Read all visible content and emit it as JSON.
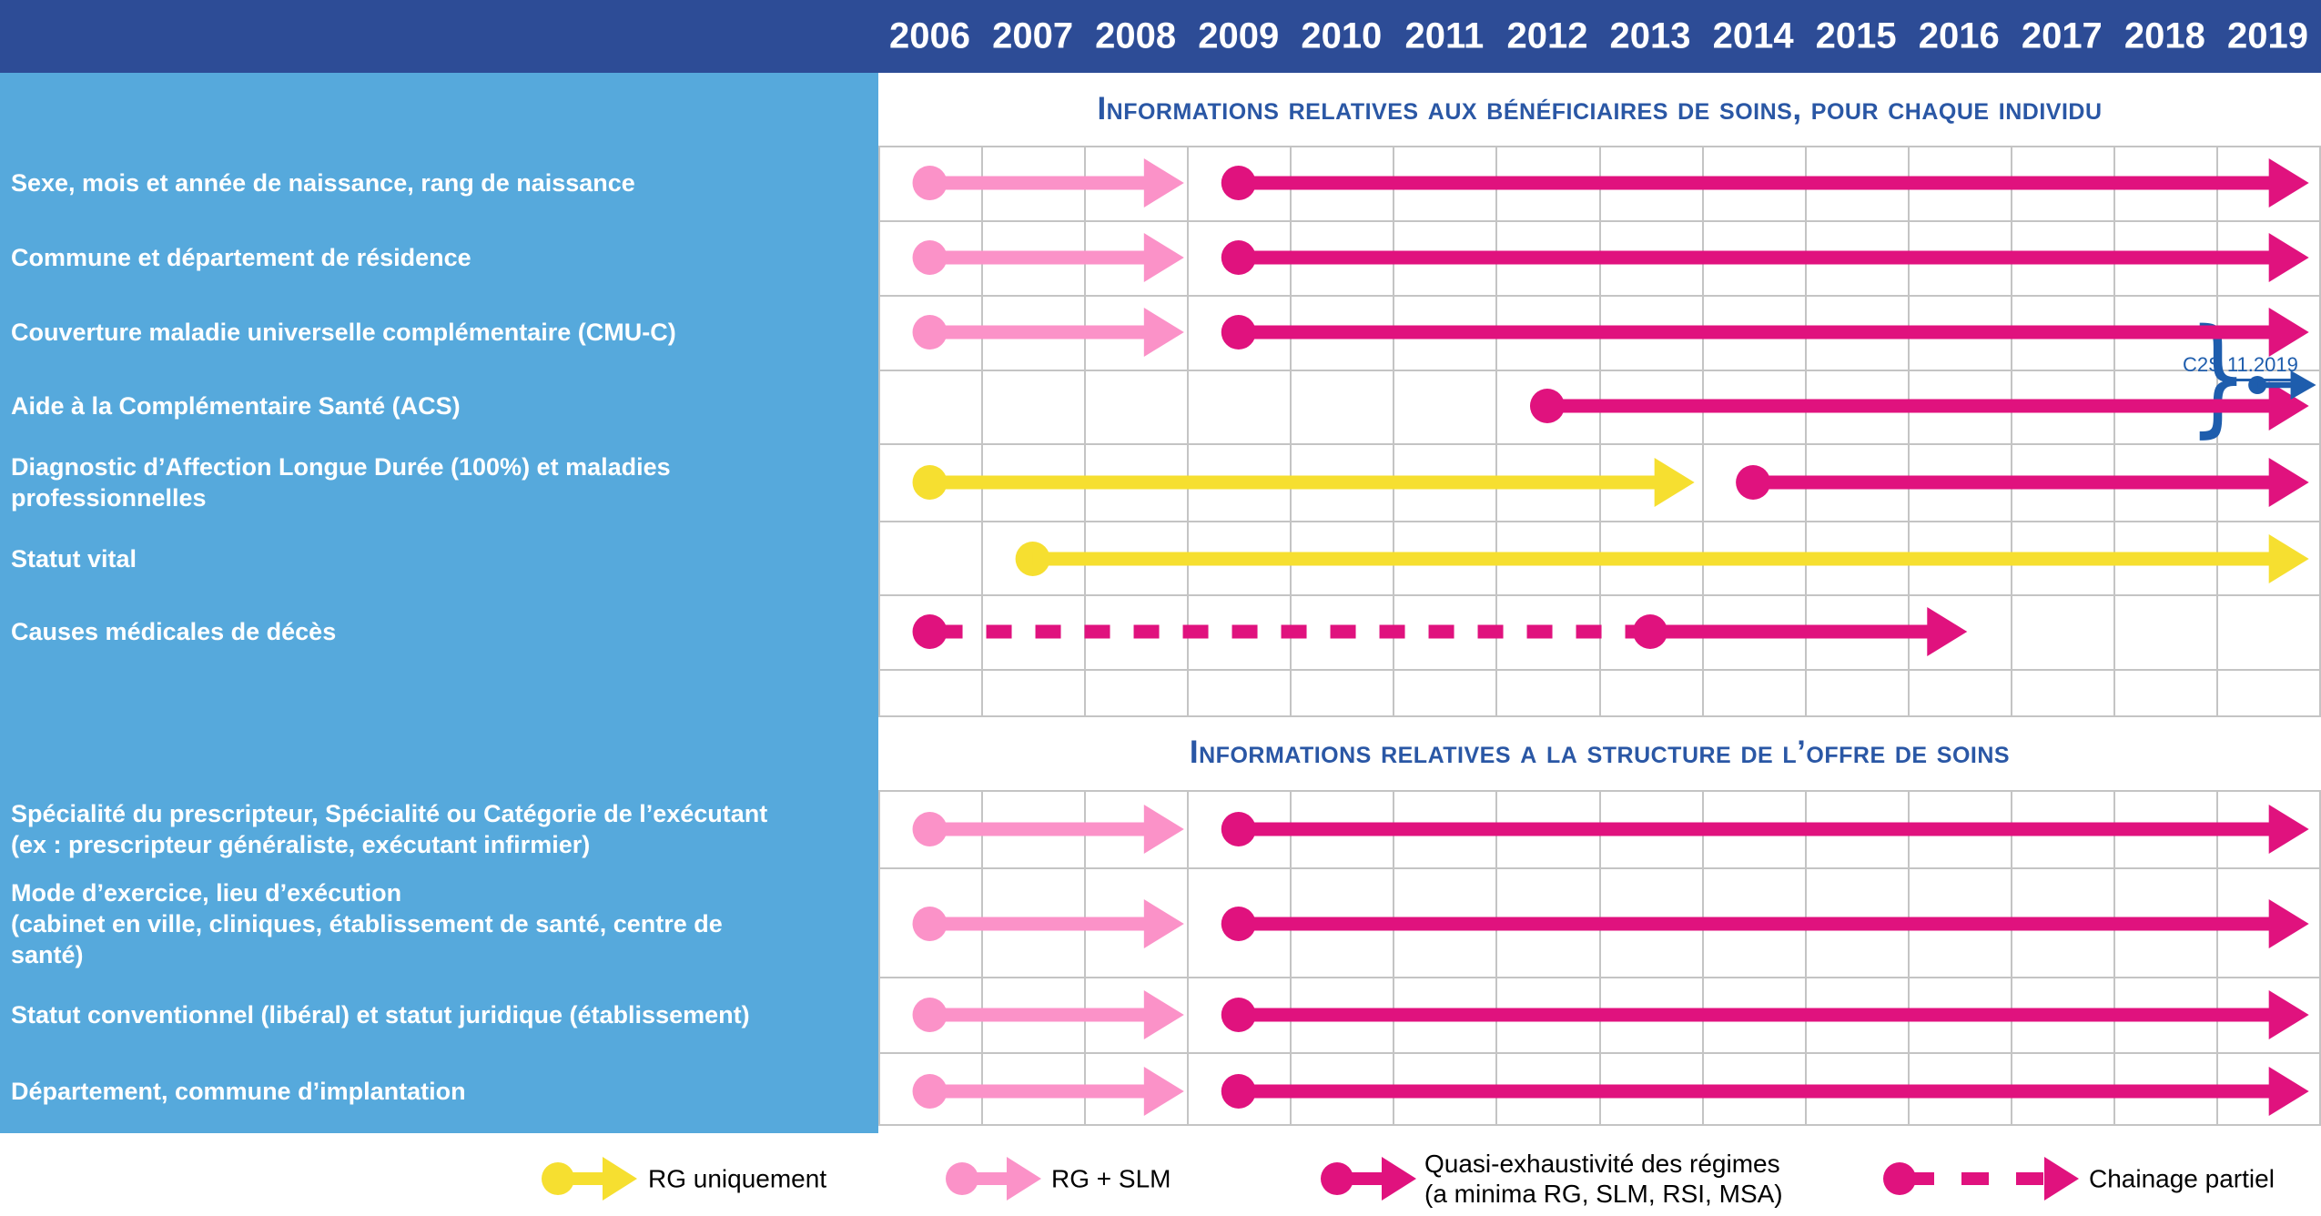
{
  "header": {
    "years": [
      "2006",
      "2007",
      "2008",
      "2009",
      "2010",
      "2011",
      "2012",
      "2013",
      "2014",
      "2015",
      "2016",
      "2017",
      "2018",
      "2019"
    ]
  },
  "sections": [
    {
      "title": "Informations relatives aux bénéficiaires de soins, pour chaque individu"
    },
    {
      "title": "Informations relatives a la structure de l’offre de soins"
    }
  ],
  "annotation": {
    "text": "C2S 11.2019"
  },
  "legend": {
    "items": [
      {
        "color_key": "yellow",
        "style": "solid",
        "lines": [
          "RG uniquement"
        ]
      },
      {
        "color_key": "pink",
        "style": "solid",
        "lines": [
          "RG + SLM"
        ]
      },
      {
        "color_key": "magenta",
        "style": "solid",
        "lines": [
          "Quasi-exhaustivité des régimes",
          "(a minima RG, SLM, RSI, MSA)"
        ]
      },
      {
        "color_key": "magenta",
        "style": "dashed",
        "lines": [
          "Chainage partiel"
        ]
      }
    ]
  },
  "colors": {
    "header_bg": "#2d4c96",
    "sidebar_bg": "#56a9dc",
    "title_blue": "#2a57a5",
    "annotation_blue": "#1e5dad",
    "grid": "#c4c4c4",
    "yellow": "#f6df30",
    "pink": "#fb92c8",
    "magenta": "#e0127e",
    "legend_text": "#000000"
  },
  "chart_data": {
    "type": "gantt",
    "title": "",
    "x_axis": {
      "labels": [
        2006,
        2007,
        2008,
        2009,
        2010,
        2011,
        2012,
        2013,
        2014,
        2015,
        2016,
        2017,
        2018,
        2019
      ],
      "range": [
        2006,
        2020
      ]
    },
    "legend_position": "bottom",
    "grid": true,
    "rows": [
      {
        "section": 0,
        "label": "Sexe, mois et année de naissance, rang de naissance",
        "label_lines": [
          "Sexe, mois et année de naissance, rang de naissance"
        ],
        "segments": [
          {
            "color": "pink",
            "style": "solid",
            "start": 2006.5,
            "end": 2008.97
          },
          {
            "color": "magenta",
            "style": "solid",
            "start": 2009.5,
            "end": 2019.9
          }
        ]
      },
      {
        "section": 0,
        "label": "Commune et département de résidence",
        "label_lines": [
          "Commune et département de résidence"
        ],
        "segments": [
          {
            "color": "pink",
            "style": "solid",
            "start": 2006.5,
            "end": 2008.97
          },
          {
            "color": "magenta",
            "style": "solid",
            "start": 2009.5,
            "end": 2019.9
          }
        ]
      },
      {
        "section": 0,
        "label": "Couverture maladie universelle complémentaire (CMU-C)",
        "label_lines": [
          "Couverture maladie universelle complémentaire (CMU-C)"
        ],
        "segments": [
          {
            "color": "pink",
            "style": "solid",
            "start": 2006.5,
            "end": 2008.97
          },
          {
            "color": "magenta",
            "style": "solid",
            "start": 2009.5,
            "end": 2019.9
          }
        ]
      },
      {
        "section": 0,
        "label": "Aide à la Complémentaire Santé (ACS)",
        "label_lines": [
          "Aide à la Complémentaire Santé (ACS)"
        ],
        "segments": [
          {
            "color": "magenta",
            "style": "solid",
            "start": 2012.5,
            "end": 2019.9
          }
        ]
      },
      {
        "section": 0,
        "label": "Diagnostic d’Affection Longue Durée (100%) et maladies professionnelles",
        "label_lines": [
          "Diagnostic d’Affection Longue Durée (100%) et maladies",
          "professionnelles"
        ],
        "segments": [
          {
            "color": "yellow",
            "style": "solid",
            "start": 2006.5,
            "end": 2013.93
          },
          {
            "color": "magenta",
            "style": "solid",
            "start": 2014.5,
            "end": 2019.9
          }
        ]
      },
      {
        "section": 0,
        "label": "Statut vital",
        "label_lines": [
          "Statut vital"
        ],
        "segments": [
          {
            "color": "yellow",
            "style": "solid",
            "start": 2007.5,
            "end": 2019.9
          }
        ]
      },
      {
        "section": 0,
        "label": "Causes médicales de décès",
        "label_lines": [
          "Causes médicales de décès"
        ],
        "segments": [
          {
            "color": "magenta",
            "style": "dashed",
            "start": 2006.5,
            "end": 2013.5,
            "head": false
          },
          {
            "color": "magenta",
            "style": "solid",
            "start": 2013.5,
            "end": 2016.58
          }
        ]
      },
      {
        "section": 1,
        "label": "Spécialité du prescripteur, Spécialité ou Catégorie de l’exécutant (ex : prescripteur généraliste, exécutant infirmier)",
        "label_lines": [
          "Spécialité du prescripteur, Spécialité ou Catégorie de l’exécutant",
          "(ex : prescripteur généraliste, exécutant infirmier)"
        ],
        "segments": [
          {
            "color": "pink",
            "style": "solid",
            "start": 2006.5,
            "end": 2008.97
          },
          {
            "color": "magenta",
            "style": "solid",
            "start": 2009.5,
            "end": 2019.9
          }
        ]
      },
      {
        "section": 1,
        "label": "Mode d’exercice, lieu d’exécution (cabinet en ville, cliniques, établissement de santé, centre de santé)",
        "label_lines": [
          "Mode d’exercice, lieu d’exécution",
          "(cabinet en ville, cliniques, établissement de santé, centre de",
          "santé)"
        ],
        "segments": [
          {
            "color": "pink",
            "style": "solid",
            "start": 2006.5,
            "end": 2008.97
          },
          {
            "color": "magenta",
            "style": "solid",
            "start": 2009.5,
            "end": 2019.9
          }
        ]
      },
      {
        "section": 1,
        "label": "Statut conventionnel (libéral) et statut juridique (établissement)",
        "label_lines": [
          "Statut conventionnel (libéral) et statut juridique (établissement)"
        ],
        "segments": [
          {
            "color": "pink",
            "style": "solid",
            "start": 2006.5,
            "end": 2008.97
          },
          {
            "color": "magenta",
            "style": "solid",
            "start": 2009.5,
            "end": 2019.9
          }
        ]
      },
      {
        "section": 1,
        "label": "Département, commune d’implantation",
        "label_lines": [
          "Département, commune d’implantation"
        ],
        "segments": [
          {
            "color": "pink",
            "style": "solid",
            "start": 2006.5,
            "end": 2008.97
          },
          {
            "color": "magenta",
            "style": "solid",
            "start": 2009.5,
            "end": 2019.9
          }
        ]
      }
    ],
    "annotation_arrow": {
      "color": "blue",
      "start": 2019.4,
      "end": 2019.97,
      "note": "C2S 11.2019"
    }
  }
}
